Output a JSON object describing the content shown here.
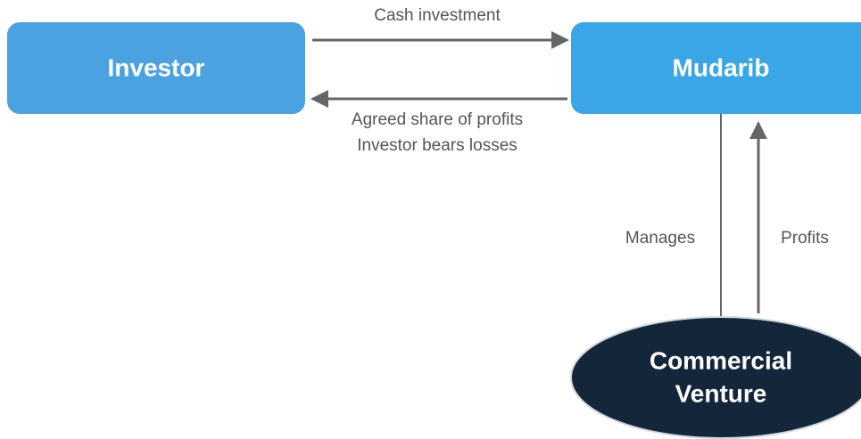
{
  "nodes": [
    {
      "label": "Investor"
    },
    {
      "label": "Mudarib"
    },
    {
      "label_lines": [
        "Commercial",
        "Venture"
      ]
    }
  ],
  "edges": [
    {
      "labels": [
        "Cash investment"
      ]
    },
    {
      "labels": [
        "Agreed share of profits",
        "Investor bears losses"
      ]
    },
    {
      "labels": [
        "Manages"
      ]
    },
    {
      "labels": [
        "Profits"
      ]
    }
  ]
}
